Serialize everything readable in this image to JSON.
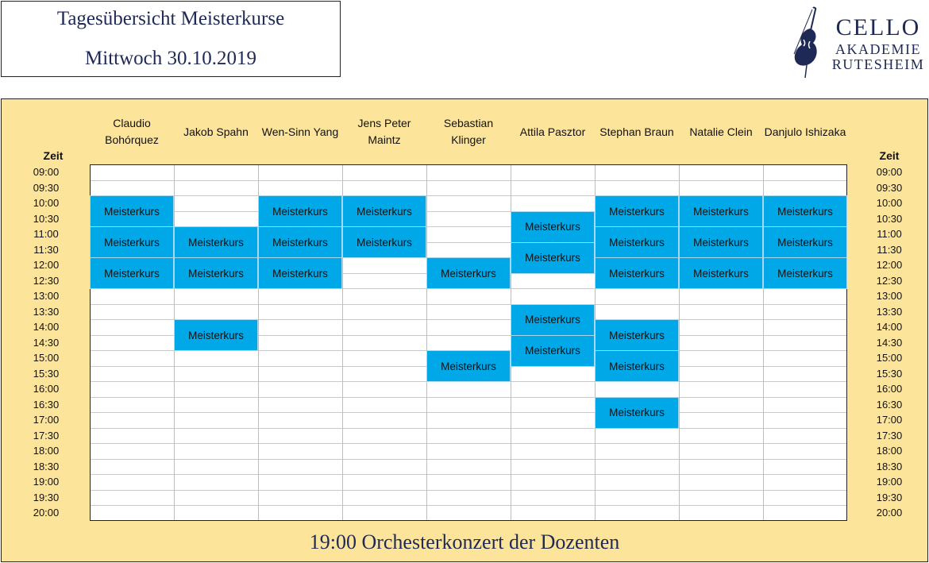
{
  "header": {
    "title": "Tagesübersicht Meisterkurse",
    "date": "Mittwoch 30.10.2019"
  },
  "logo": {
    "line1": "CELLO",
    "line2": "AKADEMIE",
    "line3": "RUTESHEIM",
    "icon": "cello-icon"
  },
  "schedule": {
    "zeit_label": "Zeit",
    "teachers": [
      "Claudio Bohórquez",
      "Jakob Spahn",
      "Wen-Sinn Yang",
      "Jens Peter Maintz",
      "Sebastian Klinger",
      "Attila Pasztor",
      "Stephan Braun",
      "Natalie Clein",
      "Danjulo Ishizaka"
    ],
    "times": [
      "09:00",
      "09:30",
      "10:00",
      "10:30",
      "11:00",
      "11:30",
      "12:00",
      "12:30",
      "13:00",
      "13:30",
      "14:00",
      "14:30",
      "15:00",
      "15:30",
      "16:00",
      "16:30",
      "17:00",
      "17:30",
      "18:00",
      "18:30",
      "19:00",
      "19:30",
      "20:00"
    ],
    "event_label": "Meisterkurs",
    "event_color": "#00a8e8",
    "events": [
      {
        "teacher": 0,
        "start": "10:00",
        "end": "11:00"
      },
      {
        "teacher": 0,
        "start": "11:00",
        "end": "12:00"
      },
      {
        "teacher": 0,
        "start": "12:00",
        "end": "13:00"
      },
      {
        "teacher": 1,
        "start": "11:00",
        "end": "12:00"
      },
      {
        "teacher": 1,
        "start": "12:00",
        "end": "13:00"
      },
      {
        "teacher": 1,
        "start": "14:00",
        "end": "15:00"
      },
      {
        "teacher": 2,
        "start": "10:00",
        "end": "11:00"
      },
      {
        "teacher": 2,
        "start": "11:00",
        "end": "12:00"
      },
      {
        "teacher": 2,
        "start": "12:00",
        "end": "13:00"
      },
      {
        "teacher": 3,
        "start": "10:00",
        "end": "11:00"
      },
      {
        "teacher": 3,
        "start": "11:00",
        "end": "12:00"
      },
      {
        "teacher": 4,
        "start": "12:00",
        "end": "13:00"
      },
      {
        "teacher": 4,
        "start": "15:00",
        "end": "16:00"
      },
      {
        "teacher": 5,
        "start": "10:30",
        "end": "11:30"
      },
      {
        "teacher": 5,
        "start": "11:30",
        "end": "12:30"
      },
      {
        "teacher": 5,
        "start": "13:30",
        "end": "14:30"
      },
      {
        "teacher": 5,
        "start": "14:30",
        "end": "15:30"
      },
      {
        "teacher": 6,
        "start": "10:00",
        "end": "11:00"
      },
      {
        "teacher": 6,
        "start": "11:00",
        "end": "12:00"
      },
      {
        "teacher": 6,
        "start": "12:00",
        "end": "13:00"
      },
      {
        "teacher": 6,
        "start": "14:00",
        "end": "15:00"
      },
      {
        "teacher": 6,
        "start": "15:00",
        "end": "16:00"
      },
      {
        "teacher": 6,
        "start": "16:30",
        "end": "17:30"
      },
      {
        "teacher": 7,
        "start": "10:00",
        "end": "11:00"
      },
      {
        "teacher": 7,
        "start": "11:00",
        "end": "12:00"
      },
      {
        "teacher": 7,
        "start": "12:00",
        "end": "13:00"
      },
      {
        "teacher": 8,
        "start": "10:00",
        "end": "11:00"
      },
      {
        "teacher": 8,
        "start": "11:00",
        "end": "12:00"
      },
      {
        "teacher": 8,
        "start": "12:00",
        "end": "13:00"
      }
    ]
  },
  "footer": {
    "text": "19:00 Orchesterkonzert der Dozenten"
  }
}
